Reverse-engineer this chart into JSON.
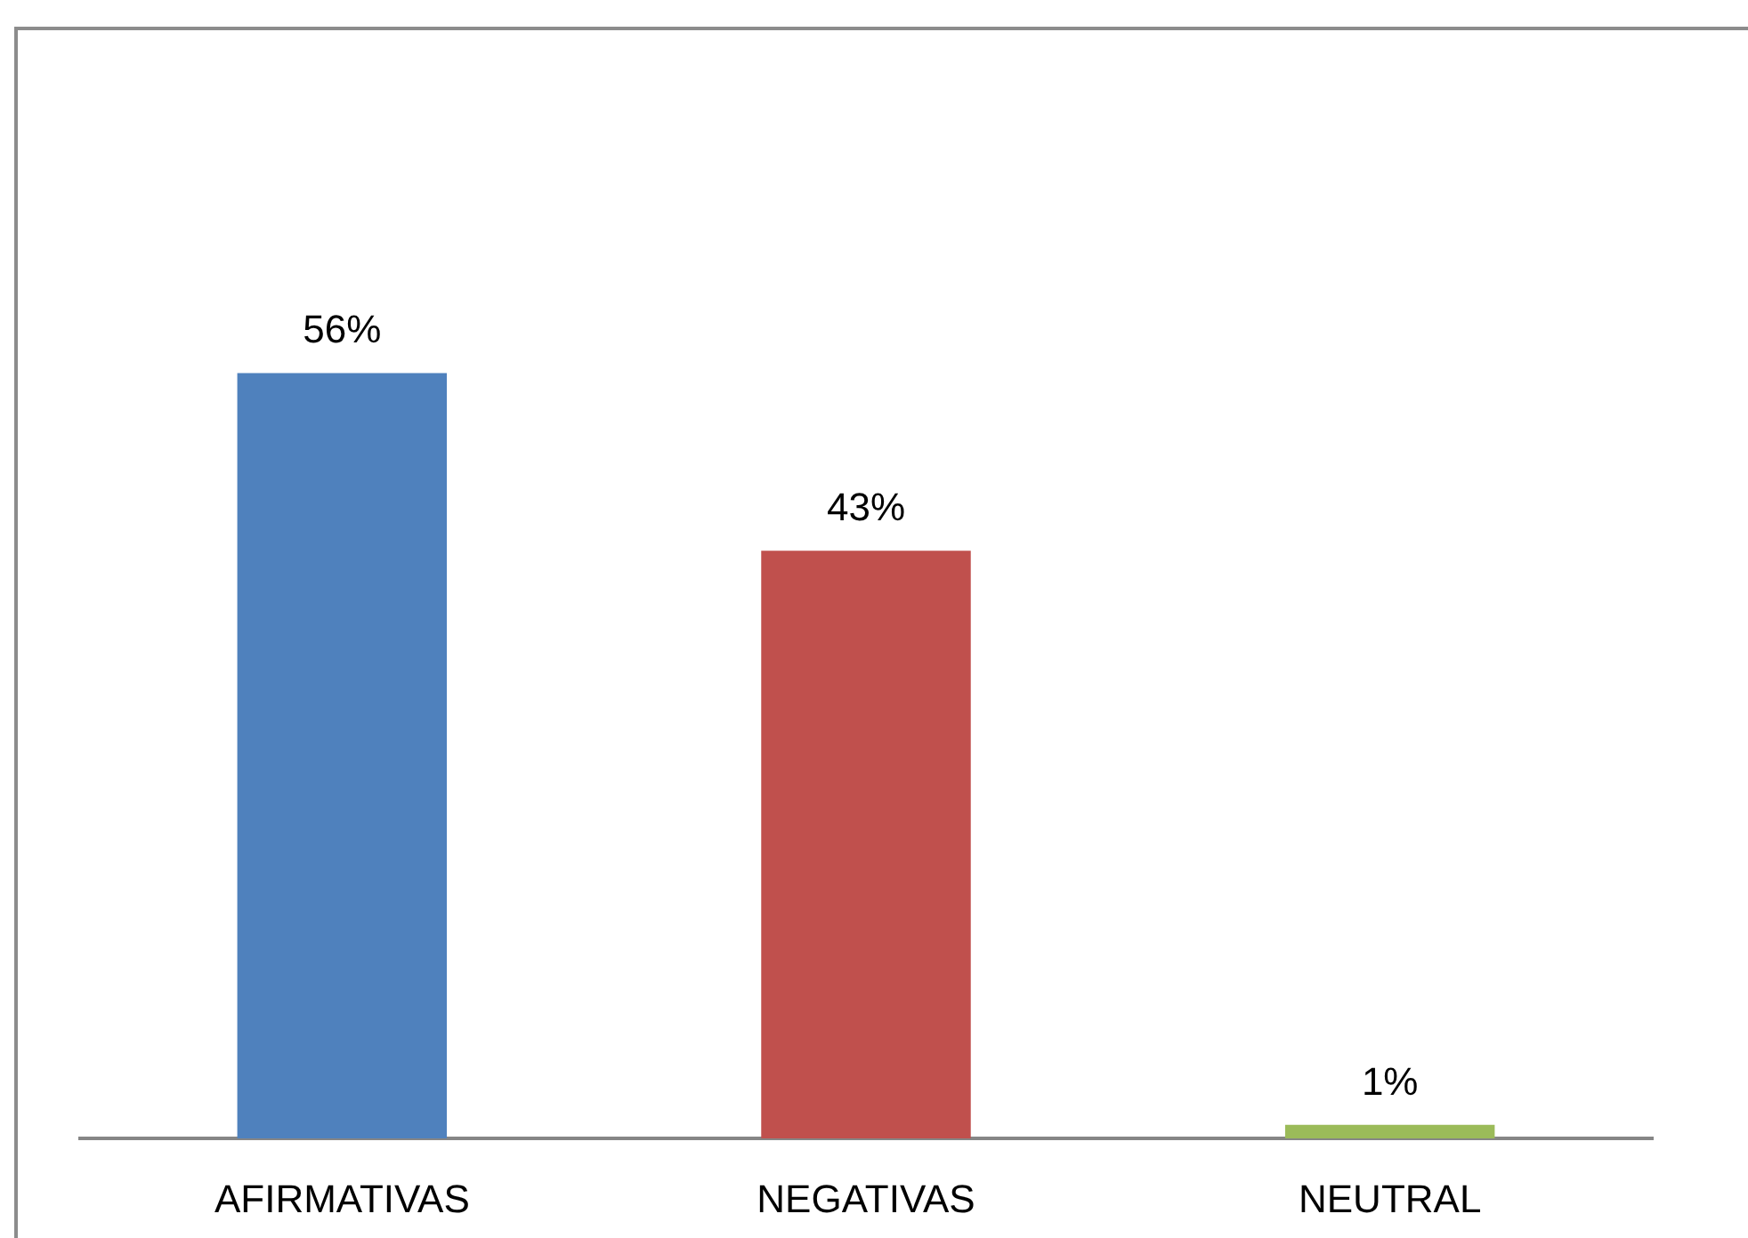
{
  "chart_data": {
    "type": "bar",
    "categories": [
      "AFIRMATIVAS",
      "NEGATIVAS",
      "NEUTRAL"
    ],
    "values": [
      56,
      43,
      1
    ],
    "colors": [
      "#4f81bd",
      "#c0504d",
      "#9bbb59"
    ],
    "value_labels": [
      "56%",
      "43%",
      "1%"
    ],
    "tick_labels": "x"
  }
}
